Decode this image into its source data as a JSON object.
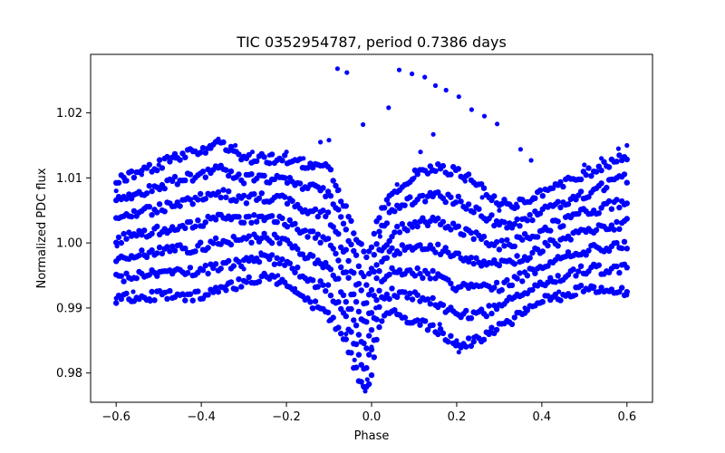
{
  "chart_data": {
    "type": "scatter",
    "title": "TIC 0352954787, period 0.7386 days",
    "xlabel": "Phase",
    "ylabel": "Normalized PDC flux",
    "xlim": [
      -0.66,
      0.66
    ],
    "ylim": [
      0.9755,
      1.029
    ],
    "grid": false,
    "legend": "none",
    "x_ticks": [
      -0.6,
      -0.4,
      -0.2,
      0.0,
      0.2,
      0.4,
      0.6
    ],
    "x_tick_labels": [
      "−0.6",
      "−0.4",
      "−0.2",
      "0.0",
      "0.2",
      "0.4",
      "0.6"
    ],
    "y_ticks": [
      0.98,
      0.99,
      1.0,
      1.01,
      1.02
    ],
    "y_tick_labels": [
      "0.98",
      "0.99",
      "1.00",
      "1.01",
      "1.02"
    ],
    "series": [
      {
        "name": "PDC flux",
        "color": "#0000ff",
        "marker": "circle",
        "description_of_distribution": "dense band from phase -0.6 to 0.6, flux ~0.991-1.013, with an eclipse minimum near phase 0.0 reaching ~0.977",
        "points": [
          {
            "x": -0.6,
            "y": 0.9915
          },
          {
            "x": -0.6,
            "y": 1.008
          },
          {
            "x": -0.598,
            "y": 0.9995
          },
          {
            "x": -0.58,
            "y": 1.0095
          },
          {
            "x": -0.56,
            "y": 0.9925
          },
          {
            "x": -0.54,
            "y": 1.0105
          },
          {
            "x": -0.52,
            "y": 0.991
          },
          {
            "x": -0.5,
            "y": 1.012
          },
          {
            "x": -0.48,
            "y": 0.9925
          },
          {
            "x": -0.46,
            "y": 1.013
          },
          {
            "x": -0.44,
            "y": 0.992
          },
          {
            "x": -0.42,
            "y": 1.014
          },
          {
            "x": -0.4,
            "y": 0.9915
          },
          {
            "x": -0.38,
            "y": 1.015
          },
          {
            "x": -0.36,
            "y": 1.016
          },
          {
            "x": -0.34,
            "y": 0.9935
          },
          {
            "x": -0.32,
            "y": 1.015
          },
          {
            "x": -0.3,
            "y": 0.996
          },
          {
            "x": -0.28,
            "y": 1.014
          },
          {
            "x": -0.26,
            "y": 0.9985
          },
          {
            "x": -0.24,
            "y": 1.0135
          },
          {
            "x": -0.22,
            "y": 0.995
          },
          {
            "x": -0.2,
            "y": 1.014
          },
          {
            "x": -0.18,
            "y": 0.993
          },
          {
            "x": -0.16,
            "y": 1.013
          },
          {
            "x": -0.14,
            "y": 0.99
          },
          {
            "x": -0.12,
            "y": 1.0155
          },
          {
            "x": -0.1,
            "y": 0.988
          },
          {
            "x": -0.08,
            "y": 1.008
          },
          {
            "x": -0.06,
            "y": 0.986
          },
          {
            "x": -0.04,
            "y": 0.982
          },
          {
            "x": -0.02,
            "y": 0.978
          },
          {
            "x": -0.015,
            "y": 0.9772
          },
          {
            "x": -0.01,
            "y": 0.979
          },
          {
            "x": 0.0,
            "y": 0.984
          },
          {
            "x": 0.01,
            "y": 0.99
          },
          {
            "x": 0.02,
            "y": 1.001
          },
          {
            "x": 0.04,
            "y": 1.006
          },
          {
            "x": 0.06,
            "y": 1.009
          },
          {
            "x": 0.08,
            "y": 0.9885
          },
          {
            "x": 0.1,
            "y": 1.01
          },
          {
            "x": 0.12,
            "y": 0.988
          },
          {
            "x": 0.14,
            "y": 1.011
          },
          {
            "x": 0.16,
            "y": 0.9875
          },
          {
            "x": 0.18,
            "y": 1.0105
          },
          {
            "x": 0.2,
            "y": 0.985
          },
          {
            "x": 0.205,
            "y": 0.9832
          },
          {
            "x": 0.22,
            "y": 1.0095
          },
          {
            "x": 0.24,
            "y": 0.9855
          },
          {
            "x": 0.26,
            "y": 1.007
          },
          {
            "x": 0.28,
            "y": 0.9865
          },
          {
            "x": 0.3,
            "y": 1.005
          },
          {
            "x": 0.32,
            "y": 0.988
          },
          {
            "x": 0.34,
            "y": 1.006
          },
          {
            "x": 0.36,
            "y": 0.99
          },
          {
            "x": 0.38,
            "y": 1.007
          },
          {
            "x": 0.4,
            "y": 0.991
          },
          {
            "x": 0.42,
            "y": 1.0085
          },
          {
            "x": 0.44,
            "y": 0.9925
          },
          {
            "x": 0.46,
            "y": 1.01
          },
          {
            "x": 0.48,
            "y": 0.992
          },
          {
            "x": 0.5,
            "y": 1.012
          },
          {
            "x": 0.52,
            "y": 0.993
          },
          {
            "x": 0.54,
            "y": 1.013
          },
          {
            "x": 0.56,
            "y": 0.9925
          },
          {
            "x": 0.58,
            "y": 1.0145
          },
          {
            "x": 0.6,
            "y": 0.992
          },
          {
            "x": 0.6,
            "y": 1.015
          },
          {
            "x": -0.08,
            "y": 1.0268
          },
          {
            "x": -0.058,
            "y": 1.0262
          },
          {
            "x": -0.02,
            "y": 1.0182
          },
          {
            "x": 0.04,
            "y": 1.0208
          },
          {
            "x": 0.065,
            "y": 1.0266
          },
          {
            "x": 0.095,
            "y": 1.026
          },
          {
            "x": 0.125,
            "y": 1.0255
          },
          {
            "x": 0.15,
            "y": 1.0242
          },
          {
            "x": 0.175,
            "y": 1.0235
          },
          {
            "x": 0.205,
            "y": 1.0225
          },
          {
            "x": 0.235,
            "y": 1.0205
          },
          {
            "x": 0.265,
            "y": 1.0195
          },
          {
            "x": 0.295,
            "y": 1.0183
          },
          {
            "x": 0.145,
            "y": 1.0167
          },
          {
            "x": 0.35,
            "y": 1.0144
          },
          {
            "x": 0.375,
            "y": 1.0127
          },
          {
            "x": 0.115,
            "y": 1.014
          },
          {
            "x": -0.1,
            "y": 1.0158
          }
        ]
      }
    ]
  }
}
